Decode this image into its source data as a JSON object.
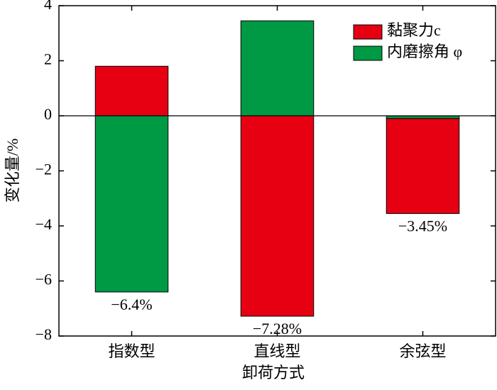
{
  "chart_data": {
    "type": "bar",
    "x_label": "卸荷方式",
    "y_label": "变化量/%",
    "categories": [
      "指数型",
      "直线型",
      "余弦型"
    ],
    "series": [
      {
        "name": "黏聚力c",
        "color": "#e60012",
        "values": [
          1.8,
          -7.28,
          -3.45
        ],
        "value_labels": [
          null,
          "−7.28%",
          "−3.45%"
        ]
      },
      {
        "name": "内磨擦角 φ",
        "color": "#009944",
        "values": [
          -6.4,
          3.45,
          -0.1
        ],
        "value_labels": [
          "−6.4%",
          null,
          null
        ]
      }
    ],
    "ylim": [
      -8,
      4
    ],
    "yticks": [
      {
        "value": -8,
        "label": "−8"
      },
      {
        "value": -6,
        "label": "−6"
      },
      {
        "value": -4,
        "label": "−4"
      },
      {
        "value": -2,
        "label": "−2"
      },
      0,
      2,
      4
    ],
    "stacked": true,
    "legend": "upper right"
  }
}
